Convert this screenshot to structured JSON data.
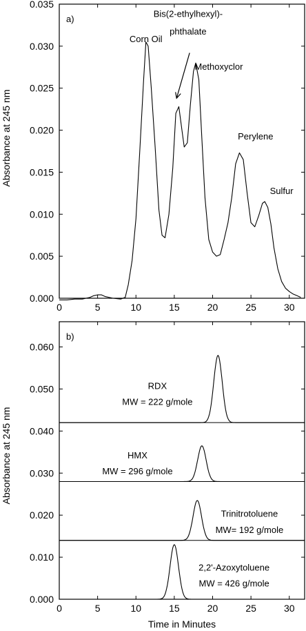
{
  "chart_data": [
    {
      "type": "line",
      "panel_label": "a)",
      "ylabel": "Absorbance at 245 nm",
      "xlabel": "",
      "xlim": [
        0,
        32
      ],
      "ylim": [
        0,
        0.035
      ],
      "x_ticks": [
        "0",
        "5",
        "10",
        "15",
        "20",
        "25",
        "30"
      ],
      "y_ticks": [
        "0.000",
        "0.005",
        "0.010",
        "0.015",
        "0.020",
        "0.025",
        "0.030",
        "0.035"
      ],
      "series": [
        {
          "x": [
            0,
            1,
            2,
            3,
            4,
            4.5,
            5,
            5.5,
            6,
            7,
            8,
            8.6,
            9,
            9.5,
            10,
            10.5,
            11,
            11.3,
            11.6,
            12,
            12.5,
            13,
            13.4,
            13.8,
            14.3,
            14.8,
            15.2,
            15.6,
            16,
            16.3,
            16.7,
            17.1,
            17.5,
            17.8,
            18.2,
            18.6,
            19,
            19.5,
            20,
            20.5,
            21,
            21.5,
            22,
            22.5,
            23,
            23.5,
            24,
            24.5,
            25,
            25.5,
            26,
            26.5,
            26.8,
            27.2,
            27.6,
            28,
            28.5,
            29,
            29.5,
            30,
            30.5,
            31,
            31.5
          ],
          "values": [
            -0.0002,
            -0.0002,
            -0.0001,
            -0.0001,
            0.0001,
            0.0003,
            0.0004,
            0.0004,
            0.0002,
            0.0,
            -0.0001,
            0.0001,
            0.0016,
            0.0045,
            0.0095,
            0.0175,
            0.026,
            0.0305,
            0.03,
            0.025,
            0.018,
            0.0105,
            0.0075,
            0.0072,
            0.01,
            0.0155,
            0.022,
            0.0228,
            0.02,
            0.018,
            0.0185,
            0.023,
            0.027,
            0.028,
            0.026,
            0.019,
            0.012,
            0.007,
            0.0055,
            0.005,
            0.0052,
            0.007,
            0.009,
            0.012,
            0.016,
            0.0173,
            0.0165,
            0.0125,
            0.009,
            0.0085,
            0.0098,
            0.0113,
            0.0115,
            0.0108,
            0.0088,
            0.006,
            0.0035,
            0.002,
            0.0012,
            0.0008,
            0.0005,
            0.0003,
            0.0001
          ]
        }
      ],
      "annotations": [
        {
          "text": "Corn Oil",
          "x": 11.3,
          "y": 0.0305
        },
        {
          "text": "Bis(2-ethylhexyl)-",
          "x": 16.8,
          "y": 0.0335
        },
        {
          "text": "phthalate",
          "x": 16.8,
          "y": 0.0314
        },
        {
          "text": "Methoxyclor",
          "x": 20.8,
          "y": 0.0272
        },
        {
          "text": "Perylene",
          "x": 25.6,
          "y": 0.0189
        },
        {
          "text": "Sulfur",
          "x": 29.0,
          "y": 0.0124
        }
      ],
      "arrow": {
        "from_x": 17.0,
        "from_y": 0.0292,
        "to_x": 15.3,
        "to_y": 0.0238
      }
    },
    {
      "type": "line",
      "panel_label": "b)",
      "ylabel": "Absorbance at 245 nm",
      "xlabel": "Time in Minutes",
      "xlim": [
        0,
        32
      ],
      "ylim": [
        0,
        0.066
      ],
      "x_ticks": [
        "0",
        "5",
        "10",
        "15",
        "20",
        "25",
        "30"
      ],
      "y_ticks": [
        "0.000",
        "0.010",
        "0.020",
        "0.030",
        "0.040",
        "0.050",
        "0.060"
      ],
      "baselines": [
        0.042,
        0.028,
        0.014,
        0.0
      ],
      "series": [
        {
          "baseline": 0.042,
          "peak_x": 20.7,
          "peak_y": 0.058,
          "width": 0.55
        },
        {
          "baseline": 0.028,
          "peak_x": 18.6,
          "peak_y": 0.0365,
          "width": 0.55
        },
        {
          "baseline": 0.014,
          "peak_x": 18.0,
          "peak_y": 0.0235,
          "width": 0.55
        },
        {
          "baseline": 0.0,
          "peak_x": 15.0,
          "peak_y": 0.013,
          "width": 0.55
        }
      ],
      "annotations": [
        {
          "text": "RDX",
          "x": 12.8,
          "y": 0.05
        },
        {
          "text": "MW = 222 g/mole",
          "x": 12.8,
          "y": 0.0462
        },
        {
          "text": "HMX",
          "x": 10.2,
          "y": 0.0335
        },
        {
          "text": "MW = 296 g/mole",
          "x": 10.2,
          "y": 0.0297
        },
        {
          "text": "Trinitrotoluene",
          "x": 24.8,
          "y": 0.0196
        },
        {
          "text": "MW= 192 g/mole",
          "x": 24.8,
          "y": 0.0158
        },
        {
          "text": "2,2'-Azoxytoluene",
          "x": 22.8,
          "y": 0.0068
        },
        {
          "text": "MW = 426 g/mole",
          "x": 22.8,
          "y": 0.003
        }
      ]
    }
  ]
}
